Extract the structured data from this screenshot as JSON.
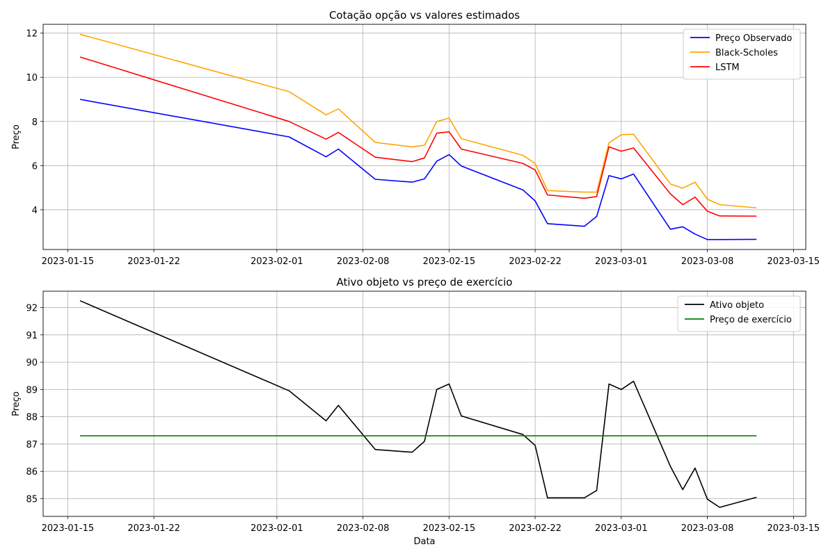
{
  "chart_data": [
    {
      "type": "line",
      "title": "Cotação opção vs valores estimados",
      "xlabel": "",
      "ylabel": "Preço",
      "xlim": [
        "2023-01-13",
        "2023-03-16"
      ],
      "ylim": [
        2.2,
        12.4
      ],
      "x_ticks": [
        "2023-01-15",
        "2023-01-22",
        "2023-02-01",
        "2023-02-08",
        "2023-02-15",
        "2023-02-22",
        "2023-03-01",
        "2023-03-08",
        "2023-03-15"
      ],
      "y_ticks": [
        4,
        6,
        8,
        10,
        12
      ],
      "grid": true,
      "legend": "upper-right",
      "series": [
        {
          "name": "Preço Observado",
          "color": "#0000ff",
          "x": [
            "2023-01-16",
            "2023-02-02",
            "2023-02-05",
            "2023-02-06",
            "2023-02-09",
            "2023-02-12",
            "2023-02-13",
            "2023-02-14",
            "2023-02-15",
            "2023-02-16",
            "2023-02-21",
            "2023-02-22",
            "2023-02-23",
            "2023-02-26",
            "2023-02-27",
            "2023-02-28",
            "2023-03-01",
            "2023-03-02",
            "2023-03-05",
            "2023-03-06",
            "2023-03-07",
            "2023-03-08",
            "2023-03-09",
            "2023-03-12"
          ],
          "values": [
            9.0,
            7.3,
            6.4,
            6.75,
            5.38,
            5.25,
            5.4,
            6.2,
            6.5,
            5.98,
            4.9,
            4.4,
            3.37,
            3.25,
            3.7,
            5.55,
            5.4,
            5.62,
            3.12,
            3.23,
            2.9,
            2.65,
            2.65,
            2.66
          ]
        },
        {
          "name": "Black-Scholes",
          "color": "#ffa500",
          "x": [
            "2023-01-16",
            "2023-02-02",
            "2023-02-05",
            "2023-02-06",
            "2023-02-09",
            "2023-02-12",
            "2023-02-13",
            "2023-02-14",
            "2023-02-15",
            "2023-02-16",
            "2023-02-21",
            "2023-02-22",
            "2023-02-23",
            "2023-02-26",
            "2023-02-27",
            "2023-02-28",
            "2023-03-01",
            "2023-03-02",
            "2023-03-05",
            "2023-03-06",
            "2023-03-07",
            "2023-03-08",
            "2023-03-09",
            "2023-03-12"
          ],
          "values": [
            11.95,
            9.35,
            8.3,
            8.57,
            7.05,
            6.85,
            6.92,
            8.0,
            8.15,
            7.22,
            6.47,
            6.1,
            4.87,
            4.8,
            4.8,
            7.03,
            7.4,
            7.42,
            5.17,
            4.98,
            5.25,
            4.48,
            4.23,
            4.09
          ]
        },
        {
          "name": "LSTM",
          "color": "#ff0000",
          "x": [
            "2023-01-16",
            "2023-02-02",
            "2023-02-05",
            "2023-02-06",
            "2023-02-09",
            "2023-02-12",
            "2023-02-13",
            "2023-02-14",
            "2023-02-15",
            "2023-02-16",
            "2023-02-21",
            "2023-02-22",
            "2023-02-23",
            "2023-02-26",
            "2023-02-27",
            "2023-02-28",
            "2023-03-01",
            "2023-03-02",
            "2023-03-05",
            "2023-03-06",
            "2023-03-07",
            "2023-03-08",
            "2023-03-09",
            "2023-03-12"
          ],
          "values": [
            10.92,
            8.0,
            7.2,
            7.5,
            6.38,
            6.18,
            6.35,
            7.47,
            7.53,
            6.75,
            6.1,
            5.8,
            4.67,
            4.52,
            4.6,
            6.85,
            6.65,
            6.8,
            4.72,
            4.23,
            4.57,
            3.93,
            3.72,
            3.71
          ]
        }
      ]
    },
    {
      "type": "line",
      "title": "Ativo objeto vs preço de exercício",
      "xlabel": "Data",
      "ylabel": "Preço",
      "xlim": [
        "2023-01-13",
        "2023-03-16"
      ],
      "ylim": [
        84.35,
        92.6
      ],
      "x_ticks": [
        "2023-01-15",
        "2023-01-22",
        "2023-02-01",
        "2023-02-08",
        "2023-02-15",
        "2023-02-22",
        "2023-03-01",
        "2023-03-08",
        "2023-03-15"
      ],
      "y_ticks": [
        85,
        86,
        87,
        88,
        89,
        90,
        91,
        92
      ],
      "grid": true,
      "legend": "upper-right",
      "series": [
        {
          "name": "Ativo objeto",
          "color": "#000000",
          "x": [
            "2023-01-16",
            "2023-02-02",
            "2023-02-05",
            "2023-02-06",
            "2023-02-09",
            "2023-02-12",
            "2023-02-13",
            "2023-02-14",
            "2023-02-15",
            "2023-02-16",
            "2023-02-21",
            "2023-02-22",
            "2023-02-23",
            "2023-02-26",
            "2023-02-27",
            "2023-02-28",
            "2023-03-01",
            "2023-03-02",
            "2023-03-05",
            "2023-03-06",
            "2023-03-07",
            "2023-03-08",
            "2023-03-09",
            "2023-03-12"
          ],
          "values": [
            92.25,
            88.95,
            87.85,
            88.42,
            86.8,
            86.7,
            87.1,
            89.0,
            89.2,
            88.03,
            87.35,
            86.95,
            85.03,
            85.03,
            85.3,
            89.2,
            89.0,
            89.3,
            86.18,
            85.33,
            86.12,
            84.98,
            84.68,
            85.05
          ]
        },
        {
          "name": "Preço de exercício",
          "color": "#008000",
          "x": [
            "2023-01-16",
            "2023-03-12"
          ],
          "values": [
            87.3,
            87.3
          ]
        }
      ]
    }
  ]
}
